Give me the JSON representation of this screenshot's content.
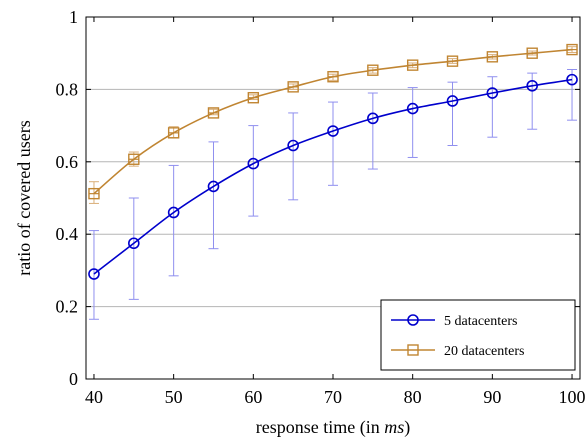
{
  "chart_data": {
    "type": "line",
    "xlabel_main": "response time (in ",
    "xlabel_unit": "ms",
    "xlabel_close": ")",
    "ylabel": "ratio of covered users",
    "xlim": [
      39,
      101
    ],
    "ylim": [
      0,
      1
    ],
    "grid": "horizontal",
    "legend_position": "bottom-right",
    "x_ticks": [
      "40",
      "50",
      "60",
      "70",
      "80",
      "90",
      "100"
    ],
    "y_ticks": [
      "0",
      "0.2",
      "0.4",
      "0.6",
      "0.8",
      "1"
    ],
    "x": [
      40,
      45,
      50,
      55,
      60,
      65,
      70,
      75,
      80,
      85,
      90,
      95,
      100
    ],
    "series": [
      {
        "name": "5 datacenters",
        "color": "#0000cc",
        "marker": "circle",
        "values": [
          0.29,
          0.375,
          0.46,
          0.532,
          0.595,
          0.645,
          0.685,
          0.72,
          0.747,
          0.768,
          0.79,
          0.81,
          0.827
        ],
        "err_low": [
          0.165,
          0.22,
          0.285,
          0.36,
          0.45,
          0.495,
          0.535,
          0.58,
          0.612,
          0.645,
          0.668,
          0.69,
          0.715
        ],
        "err_high": [
          0.41,
          0.5,
          0.59,
          0.655,
          0.7,
          0.735,
          0.765,
          0.79,
          0.805,
          0.82,
          0.835,
          0.845,
          0.855
        ]
      },
      {
        "name": "20 datacenters",
        "color": "#c08532",
        "marker": "square",
        "values": [
          0.512,
          0.607,
          0.68,
          0.735,
          0.777,
          0.807,
          0.835,
          0.853,
          0.867,
          0.878,
          0.89,
          0.9,
          0.91
        ],
        "err_low": [
          0.485,
          0.588,
          0.667,
          0.73,
          0.772,
          0.8,
          0.825,
          0.845,
          0.86,
          0.872,
          0.884,
          0.895,
          0.902
        ],
        "err_high": [
          0.545,
          0.627,
          0.697,
          0.745,
          0.785,
          0.815,
          0.842,
          0.86,
          0.873,
          0.885,
          0.896,
          0.906,
          0.918
        ]
      }
    ]
  }
}
